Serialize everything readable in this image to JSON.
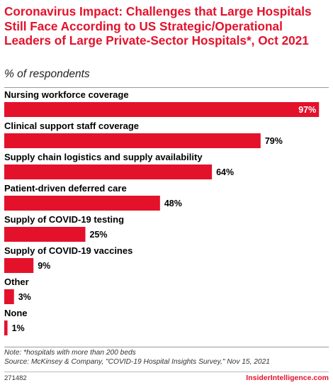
{
  "chart_data": {
    "type": "bar",
    "orientation": "horizontal",
    "title": "Coronavirus Impact: Challenges that Large Hospitals Still Face According to US Strategic/Operational Leaders of Large Private-Sector Hospitals*, Oct 2021",
    "subtitle": "% of respondents",
    "categories": [
      "Nursing workforce coverage",
      "Clinical support staff coverage",
      "Supply chain logistics and supply availability",
      "Patient-driven deferred care",
      "Supply of COVID-19 testing",
      "Supply of COVID-19 vaccines",
      "Other",
      "None"
    ],
    "values": [
      97,
      79,
      64,
      48,
      25,
      9,
      3,
      1
    ],
    "value_labels": [
      "97%",
      "79%",
      "64%",
      "48%",
      "25%",
      "9%",
      "3%",
      "1%"
    ],
    "xlim": [
      0,
      100
    ],
    "grid": false,
    "bar_color": "#e4112b"
  },
  "footer": {
    "note": "Note: *hospitals with more than 200 beds",
    "source": "Source: McKinsey & Company, \"COVID-19 Hospital Insights Survey,\" Nov 15, 2021",
    "chart_id": "271482",
    "brand": "InsiderIntelligence.com"
  }
}
